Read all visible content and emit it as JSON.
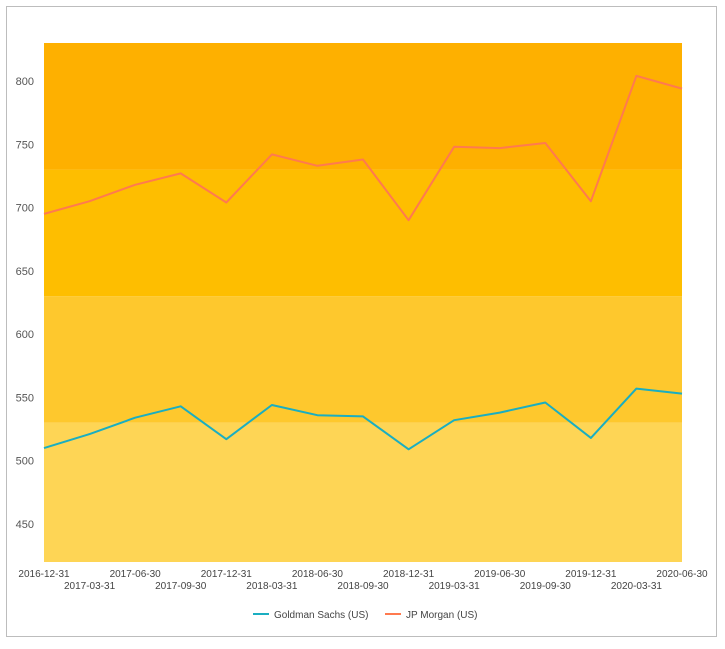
{
  "chart_data": {
    "type": "line",
    "x": [
      "2016-12-31",
      "2017-03-31",
      "2017-06-30",
      "2017-09-30",
      "2017-12-31",
      "2018-03-31",
      "2018-06-30",
      "2018-09-30",
      "2018-12-31",
      "2019-03-31",
      "2019-06-30",
      "2019-09-30",
      "2019-12-31",
      "2020-03-31",
      "2020-06-30"
    ],
    "series": [
      {
        "name": "Goldman Sachs (US)",
        "color": "#1aaec1",
        "values": [
          510,
          521,
          534,
          543,
          517,
          544,
          536,
          535,
          509,
          532,
          538,
          546,
          518,
          557,
          553
        ]
      },
      {
        "name": "JP Morgan (US)",
        "color": "#ff7a4f",
        "values": [
          695,
          705,
          718,
          727,
          704,
          742,
          733,
          738,
          690,
          748,
          747,
          751,
          705,
          804,
          794
        ]
      }
    ],
    "yticks": [
      450,
      500,
      550,
      600,
      650,
      700,
      750,
      800
    ],
    "ylim": [
      420,
      830
    ],
    "bands": [
      {
        "from": 420,
        "to": 530,
        "color": "#fed555"
      },
      {
        "from": 530,
        "to": 630,
        "color": "#fec82d"
      },
      {
        "from": 630,
        "to": 730,
        "color": "#febe00"
      },
      {
        "from": 730,
        "to": 830,
        "color": "#feb000"
      }
    ],
    "legend_position": "bottom",
    "grid": false
  }
}
